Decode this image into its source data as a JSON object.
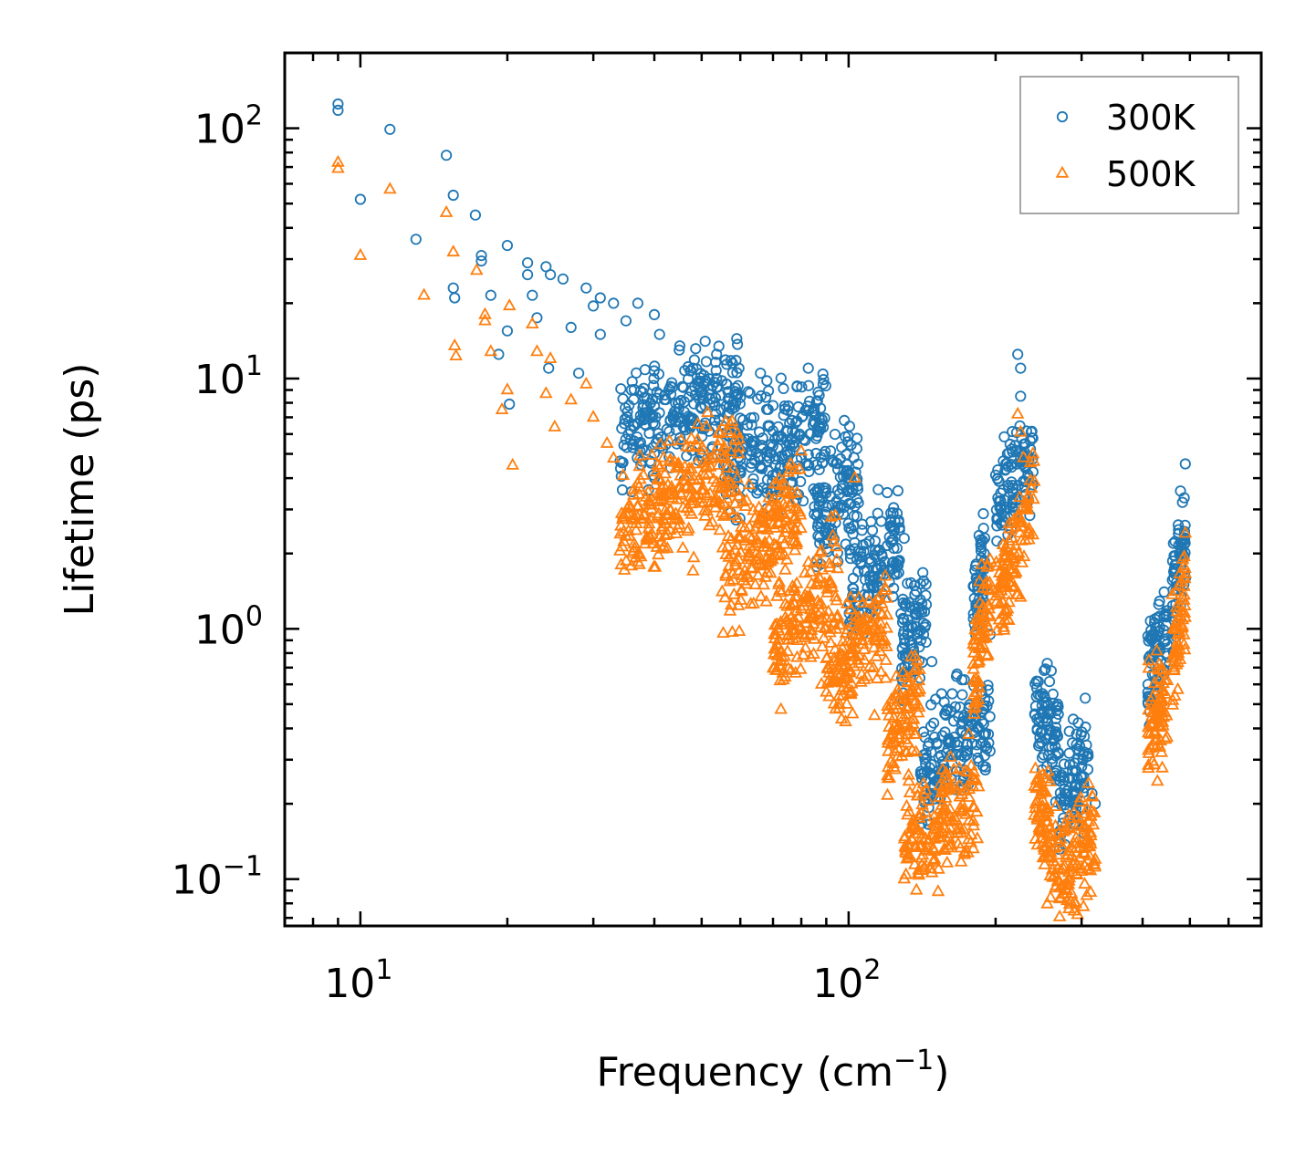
{
  "chart_data": {
    "type": "scatter",
    "xscale": "log",
    "yscale": "log",
    "xlabel": "Frequency (cm",
    "xlabel_sup": "−1",
    "xlabel_tail": ")",
    "ylabel": "Lifetime (ps)",
    "xlim": [
      7,
      700
    ],
    "ylim": [
      0.065,
      200
    ],
    "x_major_ticks": [
      {
        "value": 10,
        "base": "10",
        "exp": "1"
      },
      {
        "value": 100,
        "base": "10",
        "exp": "2"
      }
    ],
    "y_major_ticks": [
      {
        "value": 0.1,
        "base": "10",
        "exp": "−1"
      },
      {
        "value": 1,
        "base": "10",
        "exp": "0"
      },
      {
        "value": 10,
        "base": "10",
        "exp": "1"
      },
      {
        "value": 100,
        "base": "10",
        "exp": "2"
      }
    ],
    "legend": {
      "position": "top-right"
    },
    "series": [
      {
        "name": "300K",
        "marker": "circle",
        "color": "#1f77b4",
        "anchor_points": [
          [
            9.0,
            125
          ],
          [
            9.0,
            118
          ],
          [
            10.0,
            52
          ],
          [
            11.5,
            99
          ],
          [
            13.0,
            36
          ],
          [
            15.0,
            78
          ],
          [
            15.5,
            54
          ],
          [
            15.5,
            23
          ],
          [
            15.6,
            21
          ],
          [
            17.2,
            45
          ],
          [
            17.7,
            31
          ],
          [
            17.7,
            29.5
          ],
          [
            18.5,
            21.5
          ],
          [
            19.2,
            12.5
          ],
          [
            20.0,
            34
          ],
          [
            20.0,
            15.5
          ],
          [
            20.2,
            7.9
          ],
          [
            22.0,
            29
          ],
          [
            22.0,
            26
          ],
          [
            22.5,
            21.5
          ],
          [
            23.0,
            17.5
          ],
          [
            24.0,
            28
          ],
          [
            24.5,
            26
          ],
          [
            24.3,
            11
          ],
          [
            26,
            25
          ],
          [
            27,
            16
          ],
          [
            28,
            10.5
          ],
          [
            29,
            23
          ],
          [
            30,
            19.5
          ],
          [
            31,
            21
          ],
          [
            31,
            15
          ],
          [
            33,
            20
          ],
          [
            35,
            17
          ],
          [
            37,
            20
          ],
          [
            40,
            18
          ],
          [
            41,
            15
          ],
          [
            45,
            13
          ],
          [
            48,
            11
          ],
          [
            55,
            9.8
          ],
          [
            60,
            8.4
          ],
          [
            66,
            10.5
          ],
          [
            68,
            9.8
          ],
          [
            70,
            7.8
          ],
          [
            85,
            7.4
          ],
          [
            88,
            6.6
          ],
          [
            98,
            6.8
          ],
          [
            115,
            3.6
          ],
          [
            120,
            3.5
          ],
          [
            122,
            2.9
          ],
          [
            130,
            2.3
          ],
          [
            148,
            0.74
          ],
          [
            155,
            0.55
          ],
          [
            163,
            0.55
          ],
          [
            195,
            0.95
          ],
          [
            222,
            12.5
          ],
          [
            225,
            11
          ],
          [
            225,
            8.5
          ],
          [
            260,
            0.68
          ],
          [
            268,
            0.5
          ],
          [
            293,
            0.38
          ],
          [
            320,
            0.2
          ],
          [
            315,
            0.22
          ]
        ],
        "bands": [
          [
            34,
            60,
            6.0,
            9.0
          ],
          [
            55,
            90,
            4.5,
            6.5
          ],
          [
            85,
            105,
            2.5,
            4.0
          ],
          [
            100,
            128,
            1.3,
            2.2
          ],
          [
            128,
            145,
            0.8,
            1.2
          ],
          [
            140,
            195,
            0.27,
            0.42
          ],
          [
            180,
            190,
            1.3,
            1.9
          ],
          [
            200,
            240,
            3.0,
            5.2
          ],
          [
            240,
            270,
            0.5,
            0.35
          ],
          [
            270,
            310,
            0.18,
            0.32
          ],
          [
            410,
            450,
            0.7,
            1.0
          ],
          [
            460,
            490,
            1.3,
            2.5
          ]
        ]
      },
      {
        "name": "500K",
        "marker": "triangle",
        "color": "#ff7f0e",
        "anchor_points": [
          [
            9.0,
            73
          ],
          [
            9.0,
            69
          ],
          [
            10.0,
            31
          ],
          [
            11.5,
            57
          ],
          [
            13.5,
            21.5
          ],
          [
            15.0,
            46
          ],
          [
            15.5,
            32
          ],
          [
            15.6,
            13.5
          ],
          [
            15.7,
            12.3
          ],
          [
            17.3,
            27
          ],
          [
            18.0,
            18
          ],
          [
            18.0,
            17
          ],
          [
            18.5,
            12.8
          ],
          [
            19.5,
            7.5
          ],
          [
            20.0,
            9
          ],
          [
            20.2,
            19.5
          ],
          [
            20.5,
            4.5
          ],
          [
            22.5,
            16.5
          ],
          [
            23.0,
            12.8
          ],
          [
            24.0,
            8.7
          ],
          [
            24.5,
            12
          ],
          [
            25.0,
            6.4
          ],
          [
            27,
            8.2
          ],
          [
            29,
            9.5
          ],
          [
            30,
            7.0
          ],
          [
            32,
            5.5
          ],
          [
            33,
            4.8
          ],
          [
            38,
            4.1
          ],
          [
            42,
            3.4
          ],
          [
            45,
            2.6
          ],
          [
            48,
            1.7
          ],
          [
            55,
            2.9
          ],
          [
            62,
            1.6
          ],
          [
            70,
            2.6
          ],
          [
            80,
            1.2
          ],
          [
            88,
            0.6
          ],
          [
            98,
            0.7
          ],
          [
            103,
            4.0
          ],
          [
            113,
            0.45
          ],
          [
            125,
            0.35
          ],
          [
            130,
            0.1
          ],
          [
            150,
            0.12
          ],
          [
            180,
            0.17
          ],
          [
            222,
            7.2
          ],
          [
            225,
            6.1
          ],
          [
            280,
            0.09
          ],
          [
            305,
            0.14
          ],
          [
            320,
            0.12
          ]
        ],
        "bands": [
          [
            34,
            60,
            2.5,
            4.8
          ],
          [
            55,
            80,
            1.5,
            3.2
          ],
          [
            70,
            95,
            0.8,
            1.6
          ],
          [
            90,
            120,
            0.6,
            1.1
          ],
          [
            120,
            140,
            0.35,
            0.55
          ],
          [
            130,
            185,
            0.13,
            0.22
          ],
          [
            180,
            195,
            0.6,
            1.5
          ],
          [
            200,
            240,
            1.2,
            3.3
          ],
          [
            240,
            270,
            0.2,
            0.12
          ],
          [
            270,
            320,
            0.1,
            0.16
          ],
          [
            410,
            450,
            0.38,
            0.55
          ],
          [
            460,
            490,
            0.7,
            1.5
          ]
        ]
      }
    ]
  }
}
